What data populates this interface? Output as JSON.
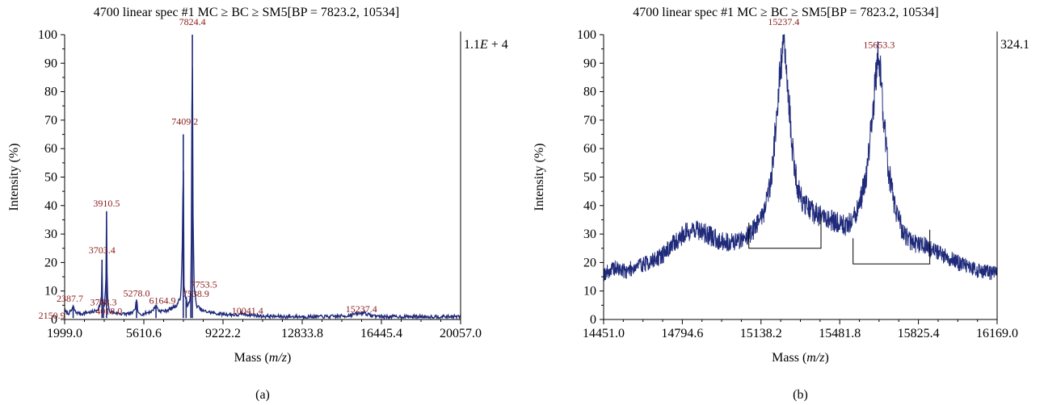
{
  "chart_data": [
    {
      "type": "line",
      "panel": "a",
      "caption": "(a)",
      "title": "4700 linear spec #1 MC ≥ BC ≥ SM5[BP = 7823.2, 10534]",
      "xlabel_pre": "Mass (",
      "xlabel_var": "m/z",
      "xlabel_post": ")",
      "ylabel": "Intensity (%)",
      "scale_text": "1.1E + 4",
      "xlim": [
        1999.0,
        20057.0
      ],
      "ylim": [
        0,
        100
      ],
      "xticks": [
        "1999.0",
        "5610.6",
        "9222.2",
        "12833.8",
        "16445.4",
        "20057.0"
      ],
      "yticks": [
        "0",
        "10",
        "20",
        "30",
        "40",
        "50",
        "60",
        "70",
        "80",
        "90",
        "100"
      ],
      "line_color": "#1f2a7a",
      "label_color": "#8b1a1a",
      "series": [
        {
          "x": [
            2000,
            2150,
            2300,
            2387.7,
            2500,
            2800,
            3000,
            3200,
            3400,
            3500,
            3600,
            3690,
            3703.4,
            3720,
            3768.3,
            3800,
            3880,
            3910.5,
            3940,
            4018.0,
            4200,
            4600,
            5000,
            5200,
            5278.0,
            5350,
            5600,
            6000,
            6164.9,
            6300,
            6600,
            6900,
            7100,
            7300,
            7380,
            7409.2,
            7440,
            7530,
            7538.9,
            7600,
            7700,
            7753.5,
            7780,
            7800,
            7824.4,
            7850,
            7900,
            8000,
            8300,
            9000,
            10000,
            10041.4,
            11000,
            12000,
            13000,
            14000,
            14800,
            15000,
            15237.4,
            15300,
            15653.3,
            15900,
            16500,
            18000,
            19000,
            20057
          ],
          "y": [
            3,
            2,
            3,
            4.5,
            2.5,
            2,
            2.5,
            2.5,
            3,
            3.5,
            5,
            8,
            21,
            8,
            5,
            4,
            12,
            38,
            10,
            3,
            2.5,
            2,
            2,
            3,
            7,
            2,
            2,
            3,
            5,
            3,
            3,
            4,
            5,
            8,
            30,
            65,
            12,
            6,
            8,
            5,
            6,
            10,
            30,
            70,
            100,
            40,
            12,
            5,
            3,
            2,
            1.5,
            2,
            1.2,
            1,
            1,
            1,
            1.2,
            1.5,
            2,
            1.8,
            2.5,
            1.5,
            1,
            1,
            1,
            1
          ]
        }
      ],
      "peak_labels": [
        {
          "text": "7824.4",
          "x": 7824.4,
          "y": 100
        },
        {
          "text": "7409.2",
          "x": 7409.2,
          "y": 65
        },
        {
          "text": "3910.5",
          "x": 3910.5,
          "y": 38
        },
        {
          "text": "3703.4",
          "x": 3703.4,
          "y": 21
        },
        {
          "text": "7753.5",
          "x": 7753.5,
          "y": 10
        },
        {
          "text": "7538.9",
          "x": 7538.9,
          "y": 8
        },
        {
          "text": "6164.9",
          "x": 6164.9,
          "y": 5
        },
        {
          "text": "5278.0",
          "x": 5278.0,
          "y": 7
        },
        {
          "text": "3768.3",
          "x": 3768.3,
          "y": 5
        },
        {
          "text": "4018.0",
          "x": 4018.0,
          "y": 3
        },
        {
          "text": "2387.7",
          "x": 2387.7,
          "y": 4.5
        },
        {
          "text": "2150.9",
          "x": 2150.9,
          "y": 2
        },
        {
          "text": "10041.4",
          "x": 10041.4,
          "y": 2
        },
        {
          "text": "15237.4",
          "x": 15237.4,
          "y": 2
        }
      ]
    },
    {
      "type": "line",
      "panel": "b",
      "caption": "(b)",
      "title": "4700 linear spec #1 MC ≥ BC ≥ SM5[BP = 7823.2, 10534]",
      "xlabel_pre": "Mass (",
      "xlabel_var": "m/z",
      "xlabel_post": ")",
      "ylabel": "Intensity (%)",
      "scale_text": "324.1",
      "xlim": [
        14451.0,
        16169.0
      ],
      "ylim": [
        0,
        100
      ],
      "xticks": [
        "14451.0",
        "14794.6",
        "15138.2",
        "15481.8",
        "15825.4",
        "16169.0"
      ],
      "yticks": [
        "0",
        "10",
        "20",
        "30",
        "40",
        "50",
        "60",
        "70",
        "80",
        "90",
        "100"
      ],
      "line_color": "#1f2a7a",
      "label_color": "#8b1a1a",
      "series": [
        {
          "x": [
            14451,
            14500,
            14550,
            14600,
            14650,
            14700,
            14750,
            14800,
            14850,
            14900,
            14950,
            15000,
            15050,
            15100,
            15150,
            15180,
            15200,
            15220,
            15237.4,
            15255,
            15275,
            15300,
            15330,
            15360,
            15400,
            15440,
            15480,
            15510,
            15540,
            15570,
            15600,
            15620,
            15640,
            15653.3,
            15670,
            15690,
            15720,
            15760,
            15800,
            15850,
            15900,
            15950,
            16000,
            16050,
            16100,
            16169
          ],
          "y": [
            16,
            18,
            17,
            19,
            20,
            22,
            26,
            30,
            32,
            30,
            28,
            27,
            28,
            31,
            38,
            48,
            65,
            85,
            98,
            82,
            60,
            45,
            40,
            38,
            36,
            35,
            34,
            33,
            35,
            40,
            52,
            68,
            85,
            93,
            75,
            55,
            40,
            30,
            27,
            26,
            24,
            22,
            20,
            18,
            17,
            16
          ]
        }
      ],
      "peak_labels": [
        {
          "text": "15237.4",
          "x": 15237.4,
          "y": 100
        },
        {
          "text": "15653.3",
          "x": 15653.3,
          "y": 93
        }
      ],
      "baselines": [
        {
          "x1": 15085,
          "x2": 15400,
          "y1": 25,
          "y2": 25
        },
        {
          "x1": 15540,
          "x2": 15875,
          "y1": 19.5,
          "y2": 19.5
        }
      ]
    }
  ]
}
